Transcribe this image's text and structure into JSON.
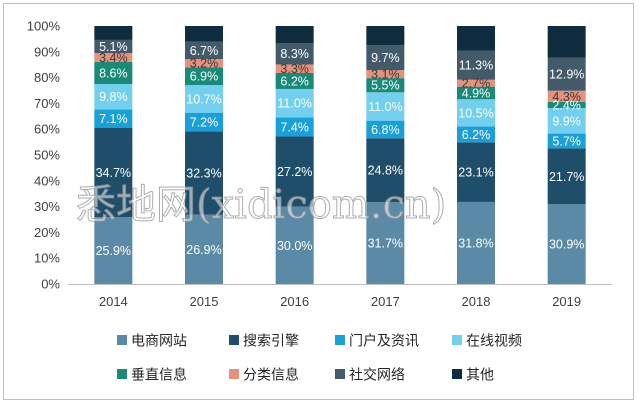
{
  "chart_data": {
    "type": "bar",
    "stacked": true,
    "categories": [
      "2014",
      "2015",
      "2016",
      "2017",
      "2018",
      "2019"
    ],
    "series": [
      {
        "name": "电商网站",
        "color": "#5b8aa6",
        "values": [
          25.9,
          26.9,
          30.0,
          31.7,
          31.8,
          30.9
        ],
        "labels": [
          "25.9%",
          "26.9%",
          "30.0%",
          "31.7%",
          "31.8%",
          "30.9%"
        ]
      },
      {
        "name": "搜索引擎",
        "color": "#1f4e6b",
        "values": [
          34.7,
          32.3,
          27.2,
          24.8,
          23.1,
          21.7
        ],
        "labels": [
          "34.7%",
          "32.3%",
          "27.2%",
          "24.8%",
          "23.1%",
          "21.7%"
        ]
      },
      {
        "name": "门户及资讯",
        "color": "#19a0d8",
        "values": [
          7.1,
          7.2,
          7.4,
          6.8,
          6.2,
          5.7
        ],
        "labels": [
          "7.1%",
          "7.2%",
          "7.4%",
          "6.8%",
          "6.2%",
          "5.7%"
        ]
      },
      {
        "name": "在线视频",
        "color": "#73cfee",
        "values": [
          9.8,
          10.7,
          11.0,
          11.0,
          10.5,
          9.9
        ],
        "labels": [
          "9.8%",
          "10.7%",
          "11.0%",
          "11.0%",
          "10.5%",
          "9.9%"
        ]
      },
      {
        "name": "垂直信息",
        "color": "#178a78",
        "values": [
          8.6,
          6.9,
          6.2,
          5.5,
          4.9,
          2.4
        ],
        "labels": [
          "8.6%",
          "6.9%",
          "6.2%",
          "5.5%",
          "4.9%",
          "2.4%"
        ]
      },
      {
        "name": "分类信息",
        "color": "#e8917a",
        "values": [
          3.4,
          3.2,
          3.3,
          3.1,
          2.7,
          4.3
        ],
        "labels": [
          "3.4%",
          "3.2%",
          "3.3%",
          "3.1%",
          "2.7%",
          "4.3%"
        ]
      },
      {
        "name": "社交网络",
        "color": "#435a6b",
        "values": [
          5.1,
          6.7,
          8.3,
          9.7,
          11.3,
          12.9
        ],
        "labels": [
          "5.1%",
          "6.7%",
          "8.3%",
          "9.7%",
          "11.3%",
          "12.9%"
        ]
      },
      {
        "name": "其他",
        "color": "#0f2d3f",
        "values": [
          5.4,
          6.1,
          6.6,
          7.4,
          9.5,
          12.2
        ]
      }
    ],
    "yticks": [
      "0%",
      "10%",
      "20%",
      "30%",
      "40%",
      "50%",
      "60%",
      "70%",
      "80%",
      "90%",
      "100%"
    ],
    "ylim": [
      0,
      100
    ],
    "grid": false,
    "legend_position": "bottom",
    "watermark": "悉地网(xidicom.cn)"
  }
}
